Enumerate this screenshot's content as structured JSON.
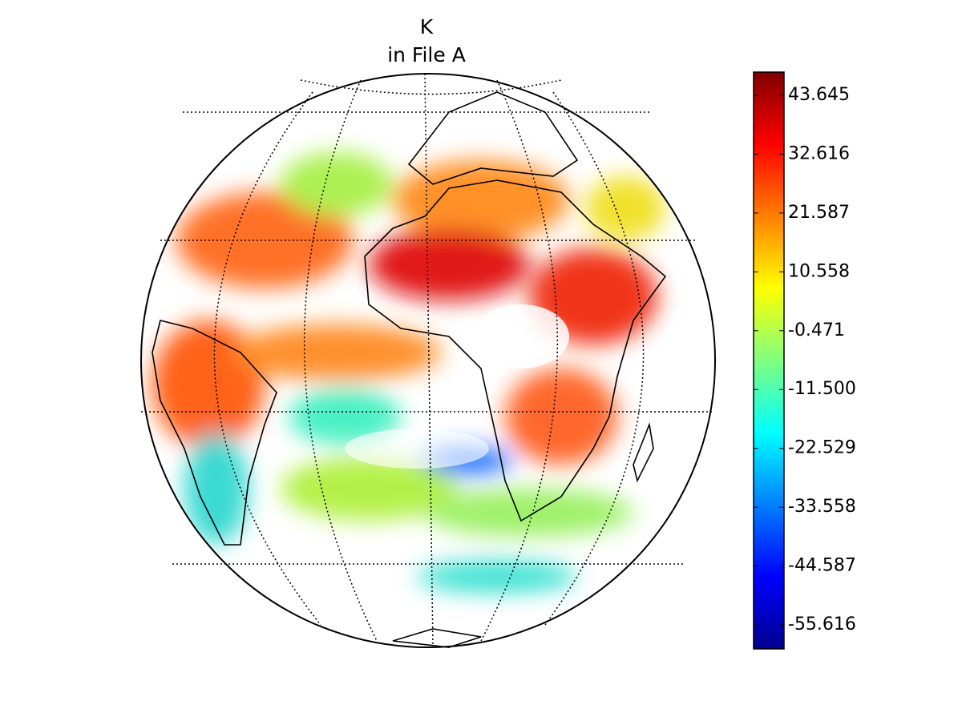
{
  "chart_data": {
    "type": "map",
    "title": "K",
    "subtitle": "in File A",
    "colorbar": {
      "clim": [
        -60.12,
        48.0
      ],
      "colormap": "jet",
      "ticks": [
        43.645,
        32.616,
        21.587,
        10.558,
        -0.471,
        {
          "value": -11.5,
          "label": "-11.500"
        },
        -22.529,
        -33.558,
        -44.587,
        -55.616
      ]
    }
  }
}
